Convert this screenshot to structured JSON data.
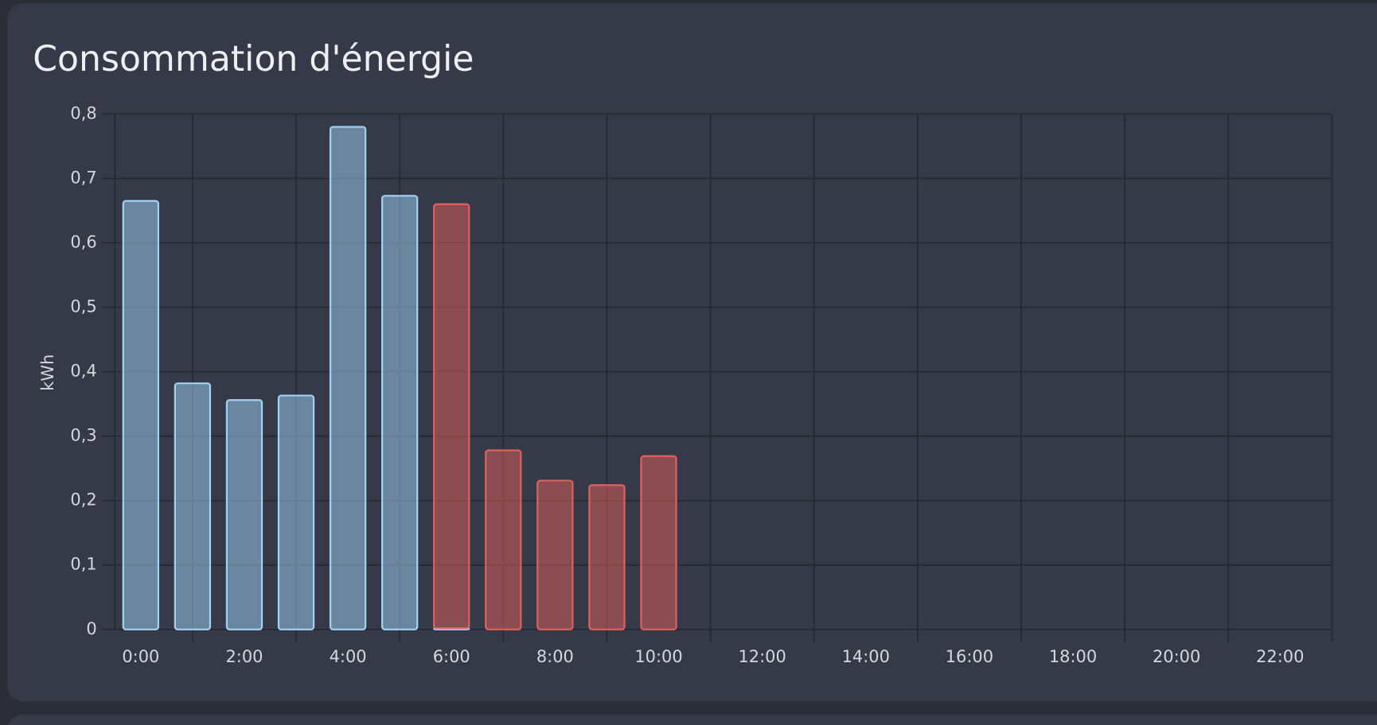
{
  "chart_data": {
    "type": "stacked-bar",
    "title": "Consommation d'énergie",
    "y_label": "kWh",
    "categories": [
      "0:00",
      null,
      "2:00",
      null,
      "4:00",
      null,
      "6:00",
      null,
      "8:00",
      null,
      "10:00",
      null,
      "12:00",
      null,
      "14:00",
      null,
      "16:00",
      null,
      "18:00",
      null,
      "20:00",
      null,
      "22:00",
      null
    ],
    "series": [
      {
        "color": "#9fd3f5",
        "values": [
          0.665,
          0.382,
          0.356,
          0.363,
          0.78,
          0.673,
          0.002,
          null,
          null,
          null,
          null,
          null,
          null,
          null,
          null,
          null,
          null,
          null,
          null,
          null,
          null,
          null,
          null,
          null
        ]
      },
      {
        "color": "#e0605c",
        "values": [
          null,
          null,
          null,
          null,
          null,
          null,
          0.658,
          0.278,
          0.231,
          0.224,
          0.269,
          null,
          null,
          null,
          null,
          null,
          null,
          null,
          null,
          null,
          null,
          null,
          null,
          null
        ]
      }
    ],
    "ylim": [
      0,
      0.8
    ],
    "yticks": [
      0,
      {
        "value": 0.1,
        "label": "0,1"
      },
      {
        "value": 0.2,
        "label": "0,2"
      },
      {
        "value": 0.3,
        "label": "0,3"
      },
      {
        "value": 0.4,
        "label": "0,4"
      },
      {
        "value": 0.5,
        "label": "0,5"
      },
      {
        "value": 0.6,
        "label": "0,6"
      },
      {
        "value": 0.7,
        "label": "0,7"
      },
      {
        "value": 0.8,
        "label": "0,8"
      }
    ],
    "grid": true
  }
}
